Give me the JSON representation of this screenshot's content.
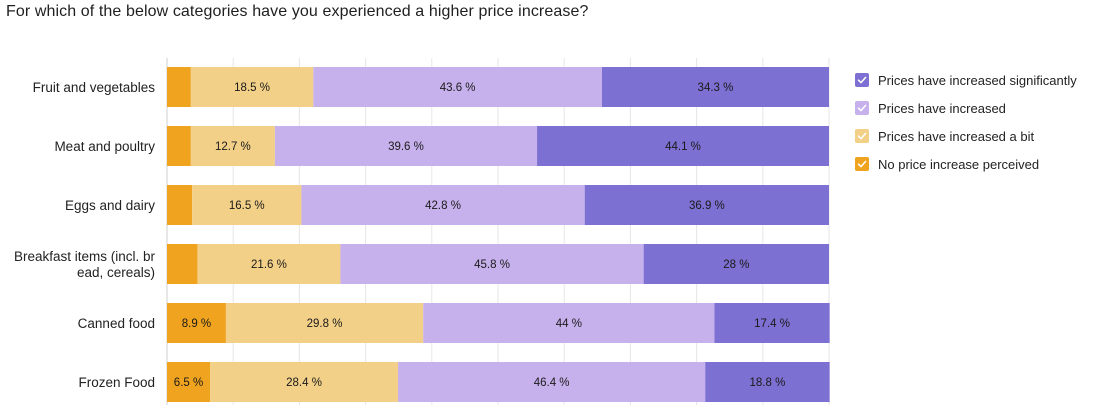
{
  "title": "For which of the below categories have you experienced a higher price increase?",
  "chart_data": {
    "type": "bar",
    "orientation": "horizontal",
    "stacked": true,
    "normalized_percent": true,
    "xlim": [
      0,
      100
    ],
    "grid": true,
    "legend_position": "right",
    "categories": [
      [
        "Fruit and vegetables"
      ],
      [
        "Meat and poultry"
      ],
      [
        "Eggs and dairy"
      ],
      [
        "Breakfast items (incl. br",
        "ead, cereals)"
      ],
      [
        "Canned food"
      ],
      [
        "Frozen Food"
      ]
    ],
    "series": [
      {
        "name": "No price increase perceived",
        "color": "#f0a31e",
        "values": [
          3.6,
          3.6,
          3.8,
          4.6,
          8.9,
          6.5
        ],
        "labels": [
          "",
          "",
          "",
          "",
          "8.9 %",
          "6.5 %"
        ]
      },
      {
        "name": "Prices have increased a bit",
        "color": "#f2d088",
        "values": [
          18.5,
          12.7,
          16.5,
          21.6,
          29.8,
          28.4
        ],
        "labels": [
          "18.5 %",
          "12.7 %",
          "16.5 %",
          "21.6 %",
          "29.8 %",
          "28.4 %"
        ]
      },
      {
        "name": "Prices have increased",
        "color": "#c7b1ec",
        "values": [
          43.6,
          39.6,
          42.8,
          45.8,
          44,
          46.4
        ],
        "labels": [
          "43.6 %",
          "39.6 %",
          "42.8 %",
          "45.8 %",
          "44 %",
          "46.4 %"
        ]
      },
      {
        "name": "Prices have increased significantly",
        "color": "#7c70d2",
        "values": [
          34.3,
          44.1,
          36.9,
          28,
          17.4,
          18.8
        ],
        "labels": [
          "34.3 %",
          "44.1 %",
          "36.9 %",
          "28 %",
          "17.4 %",
          "18.8 %"
        ]
      }
    ],
    "legend_order": [
      3,
      2,
      1,
      0
    ]
  }
}
